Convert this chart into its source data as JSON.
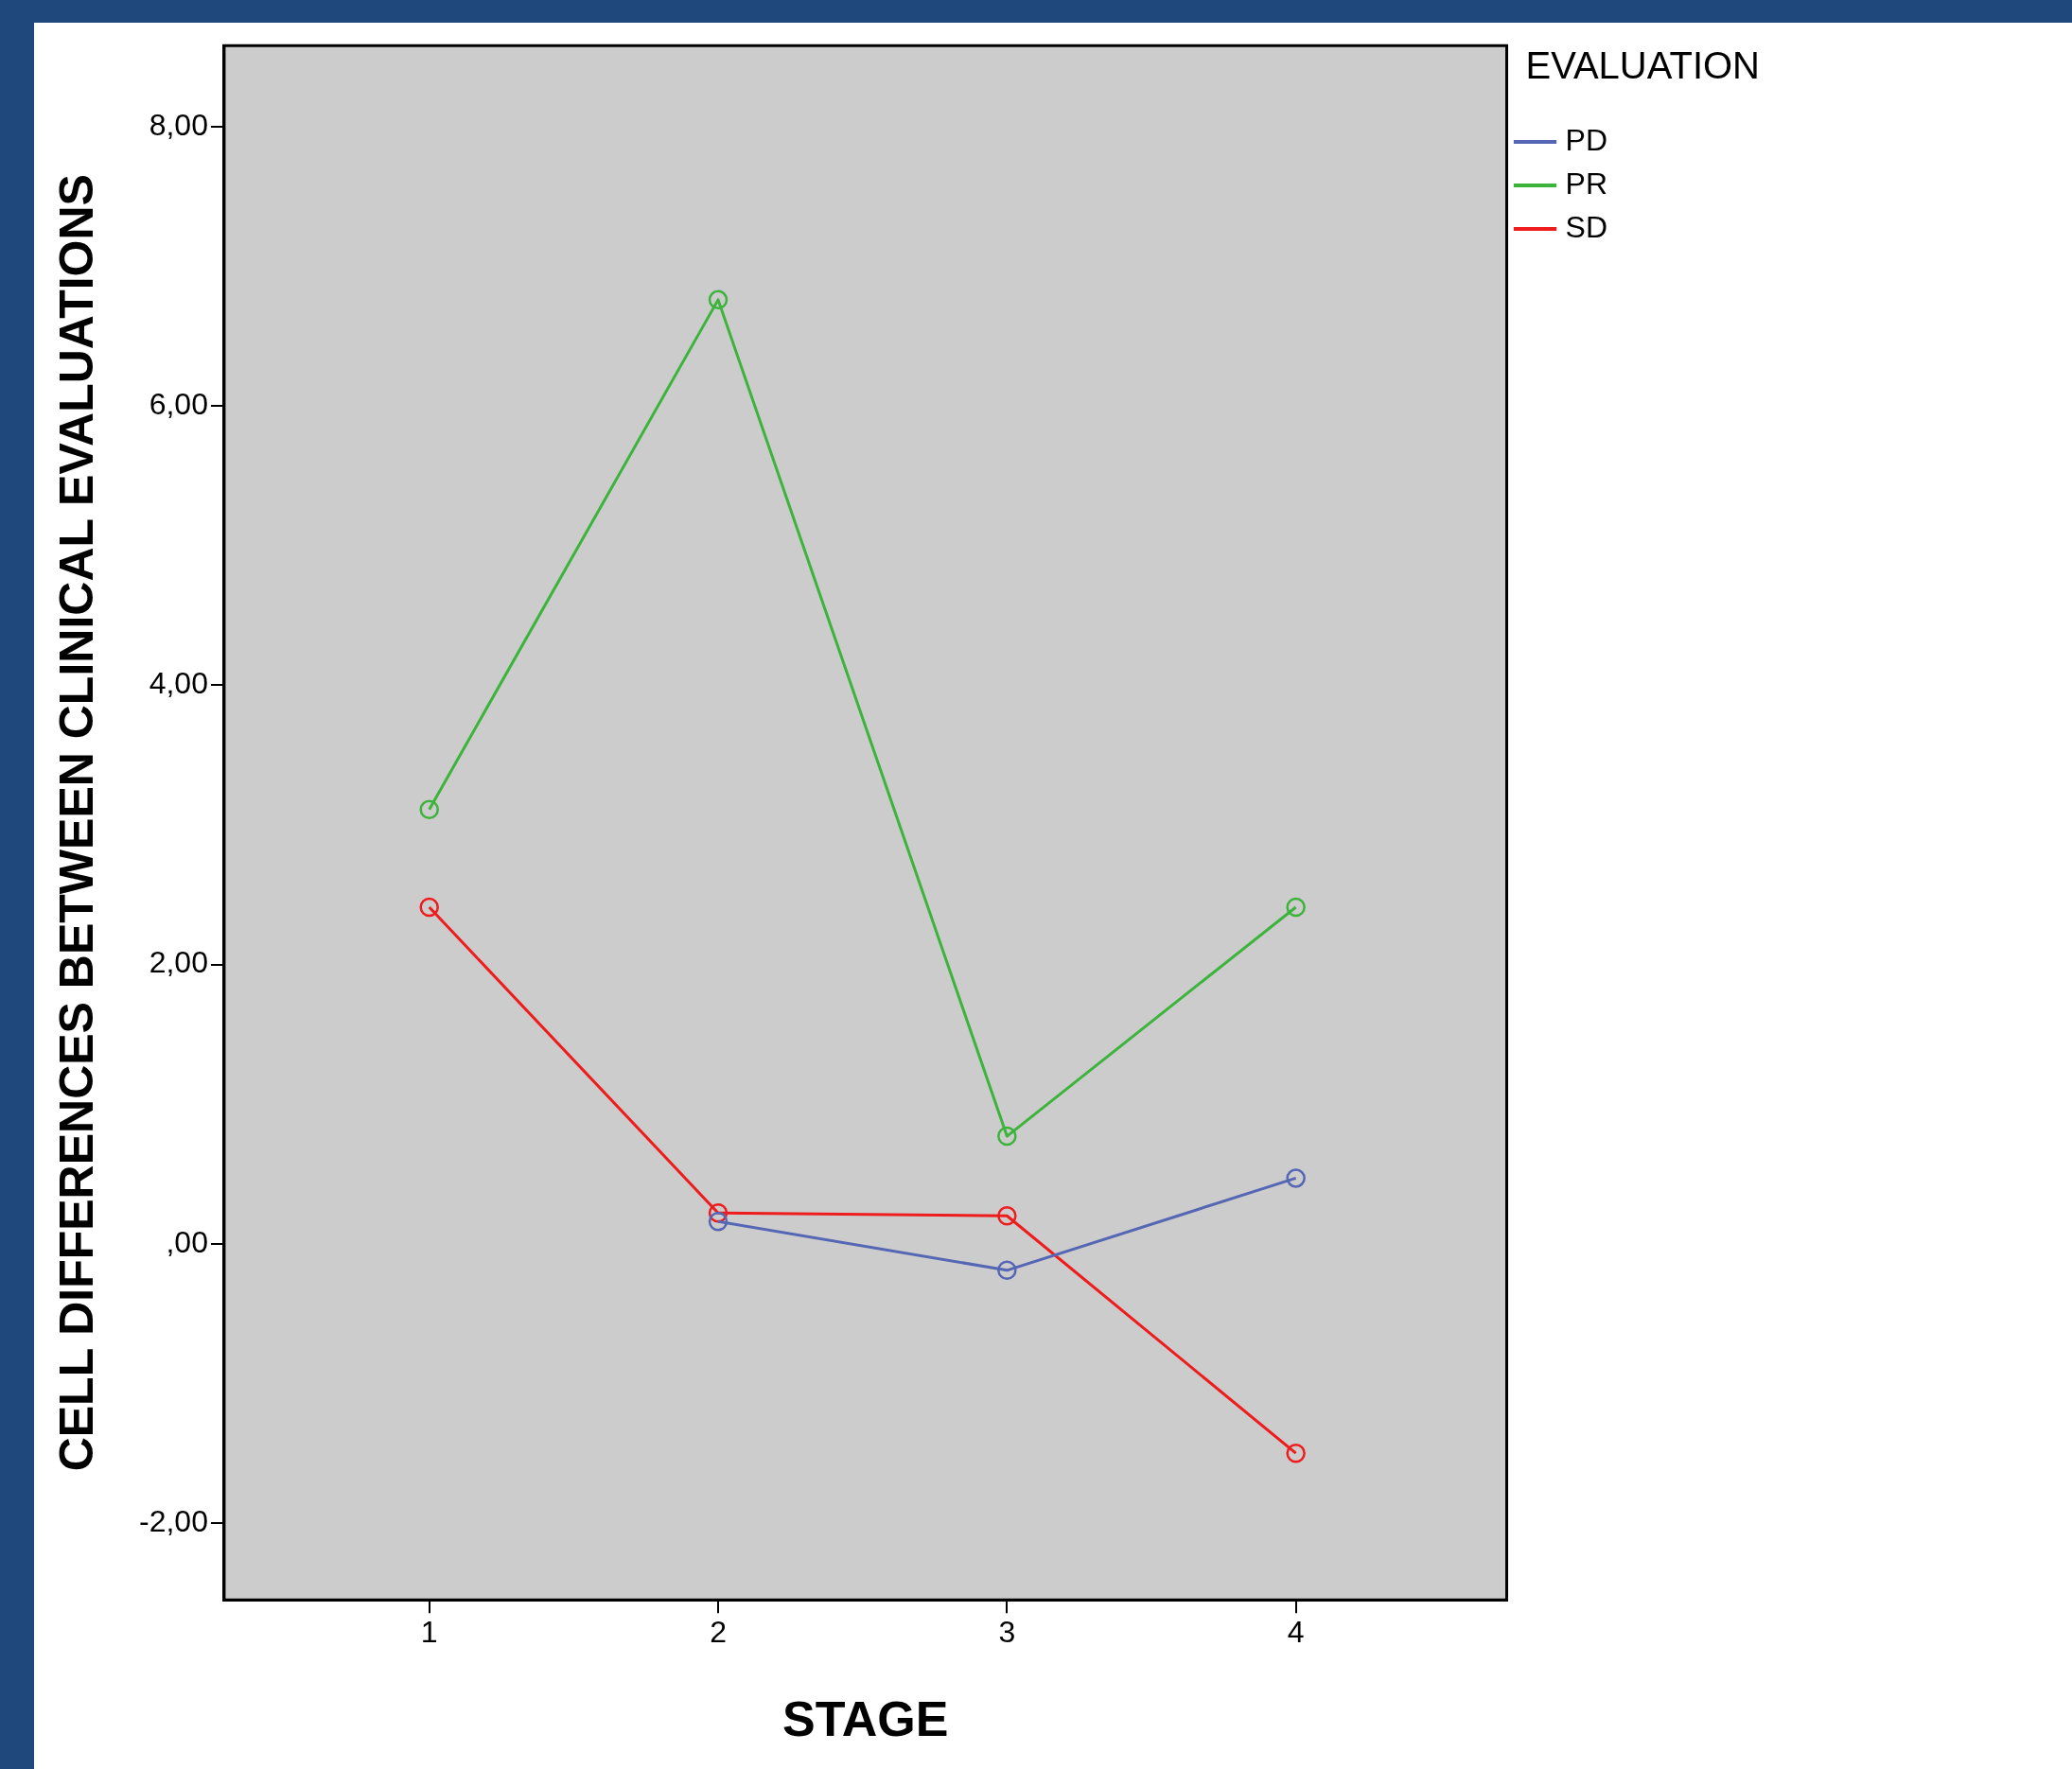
{
  "chart_data": {
    "type": "line",
    "xlabel": "STAGE",
    "ylabel": "CELL DIFFERENCES BETWEEN CLINICAL EVALUATIONS",
    "legend_title": "EVALUATION",
    "x": [
      1,
      2,
      3,
      4
    ],
    "xlim": [
      0.29,
      4.73
    ],
    "xticks": [
      1,
      2,
      3,
      4
    ],
    "ylim": [
      -2.55,
      8.58
    ],
    "yticks": [
      {
        "value": -2,
        "label": "-2,00"
      },
      {
        "value": 0,
        "label": ",00"
      },
      {
        "value": 2,
        "label": "2,00"
      },
      {
        "value": 4,
        "label": "4,00"
      },
      {
        "value": 6,
        "label": "6,00"
      },
      {
        "value": 8,
        "label": "8,00"
      }
    ],
    "series": [
      {
        "name": "PD",
        "color": "#5466b4",
        "values": [
          null,
          0.16,
          -0.19,
          0.47
        ]
      },
      {
        "name": "PR",
        "color": "#3cb43c",
        "values": [
          3.11,
          6.76,
          0.77,
          2.41
        ]
      },
      {
        "name": "SD",
        "color": "#ee1c1c",
        "values": [
          2.41,
          0.22,
          0.2,
          -1.5
        ]
      }
    ],
    "marker": "circle",
    "line_style": "solid",
    "grid": false,
    "legend": "top right"
  }
}
